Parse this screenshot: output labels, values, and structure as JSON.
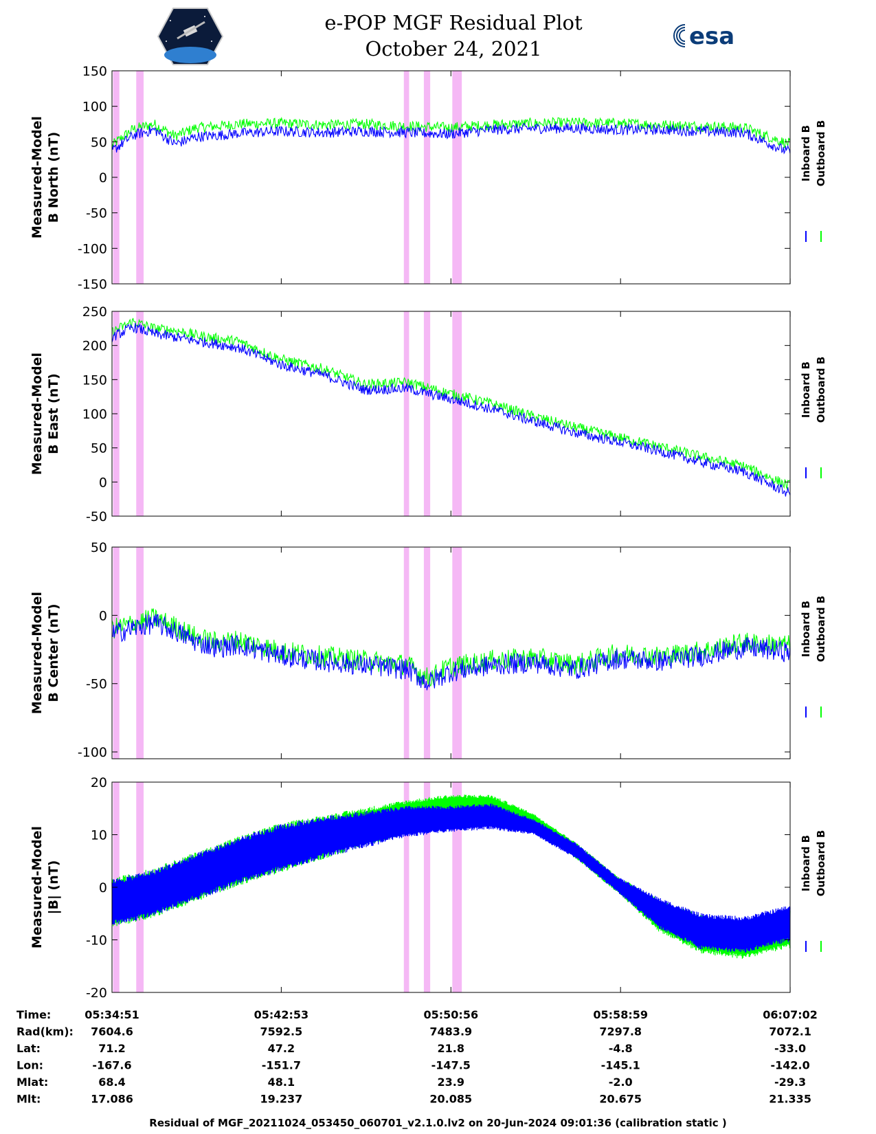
{
  "header": {
    "title": "e-POP MGF Residual Plot",
    "date": "October 24, 2021",
    "left_logo": "satellite-mission-badge",
    "right_logo_text": "esa"
  },
  "colors": {
    "inboard": "#0000ff",
    "outboard": "#00ff00",
    "shading": "#f5b8f5",
    "axis": "#000000"
  },
  "chart_data": [
    {
      "type": "line",
      "ylabel": [
        "Measured-Model",
        "B North (nT)"
      ],
      "ylim": [
        -150,
        150
      ],
      "yticks": [
        -150,
        -100,
        -50,
        0,
        50,
        100,
        150
      ],
      "legend": [
        "Inboard B",
        "Outboard B"
      ],
      "legend_position": "right-vertical",
      "x_minutes": [
        0,
        1,
        2,
        3,
        4,
        5,
        6,
        8,
        10,
        12,
        14,
        16,
        18,
        20,
        22,
        24,
        26,
        28,
        30,
        32
      ],
      "series": [
        {
          "name": "Inboard B",
          "values": [
            40,
            62,
            70,
            50,
            60,
            62,
            65,
            68,
            66,
            68,
            66,
            64,
            70,
            72,
            72,
            70,
            70,
            68,
            66,
            40
          ]
        },
        {
          "name": "Outboard B",
          "values": [
            45,
            68,
            75,
            58,
            70,
            72,
            75,
            76,
            74,
            75,
            72,
            70,
            74,
            76,
            77,
            76,
            74,
            72,
            70,
            48
          ]
        }
      ]
    },
    {
      "type": "line",
      "ylabel": [
        "Measured-Model",
        "B East (nT)"
      ],
      "ylim": [
        -50,
        250
      ],
      "yticks": [
        -50,
        0,
        50,
        100,
        150,
        200,
        250
      ],
      "legend": [
        "Inboard B",
        "Outboard B"
      ],
      "legend_position": "right-vertical",
      "x_minutes": [
        0,
        1,
        2,
        3,
        4,
        5,
        6,
        8,
        10,
        12,
        14,
        16,
        18,
        20,
        22,
        24,
        26,
        28,
        30,
        32
      ],
      "series": [
        {
          "name": "Inboard B",
          "values": [
            215,
            230,
            220,
            215,
            210,
            205,
            200,
            175,
            160,
            138,
            140,
            125,
            110,
            92,
            75,
            62,
            48,
            32,
            18,
            -12
          ]
        },
        {
          "name": "Outboard B",
          "values": [
            220,
            235,
            225,
            222,
            215,
            210,
            206,
            180,
            166,
            143,
            146,
            130,
            115,
            96,
            80,
            66,
            52,
            37,
            23,
            -4
          ]
        }
      ]
    },
    {
      "type": "line",
      "ylabel": [
        "Measured-Model",
        "B Center (nT)"
      ],
      "ylim": [
        -105,
        50
      ],
      "yticks": [
        -100,
        -50,
        0,
        50
      ],
      "legend": [
        "Inboard B",
        "Outboard B"
      ],
      "legend_position": "right-vertical",
      "x_minutes": [
        0,
        1,
        2,
        3,
        4,
        5,
        6,
        8,
        10,
        12,
        14,
        15,
        16,
        18,
        20,
        22,
        24,
        26,
        28,
        30,
        32
      ],
      "series": [
        {
          "name": "Inboard B",
          "values": [
            -12,
            -8,
            -4,
            -10,
            -18,
            -22,
            -20,
            -28,
            -32,
            -35,
            -38,
            -48,
            -40,
            -35,
            -33,
            -38,
            -30,
            -32,
            -28,
            -22,
            -25
          ]
        },
        {
          "name": "Outboard B",
          "values": [
            -10,
            -6,
            -2,
            -8,
            -16,
            -20,
            -18,
            -26,
            -30,
            -33,
            -36,
            -46,
            -38,
            -33,
            -31,
            -36,
            -28,
            -30,
            -26,
            -20,
            -22
          ]
        }
      ]
    },
    {
      "type": "line",
      "ylabel": [
        "Measured-Model",
        "|B| (nT)"
      ],
      "ylim": [
        -20,
        20
      ],
      "yticks": [
        -20,
        -10,
        0,
        10,
        20
      ],
      "legend": [
        "Inboard B",
        "Outboard B"
      ],
      "legend_position": "right-vertical",
      "x_minutes": [
        0,
        2,
        4,
        6,
        8,
        10,
        12,
        14,
        16,
        18,
        20,
        22,
        24,
        26,
        28,
        30,
        32
      ],
      "series": [
        {
          "name": "Inboard B",
          "values": [
            -3,
            -1,
            2,
            5,
            7.5,
            9.5,
            11,
            12.5,
            13,
            13.5,
            11.5,
            7,
            0.5,
            -5,
            -8.5,
            -9,
            -7
          ]
        },
        {
          "name": "Outboard B",
          "values": [
            -3,
            -1,
            2,
            5,
            7.5,
            9.5,
            11.5,
            13.5,
            15,
            15,
            12.5,
            7,
            0.5,
            -5.5,
            -9,
            -10,
            -8
          ]
        }
      ],
      "band_halfwidth": [
        4.5,
        4.5,
        4.5,
        4.5,
        4.5,
        4.0,
        3.5,
        3.0,
        2.5,
        2.5,
        1.5,
        1.5,
        1.5,
        3.0,
        3.5,
        3.5,
        3.5
      ]
    }
  ],
  "x_axis": {
    "xlim_minutes": [
      0,
      32.18
    ],
    "tick_minutes": [
      0,
      8.033,
      16.083,
      24.133,
      32.183
    ],
    "shaded_intervals_minutes": [
      [
        0.05,
        0.35
      ],
      [
        1.15,
        1.5
      ],
      [
        13.85,
        14.1
      ],
      [
        14.8,
        15.1
      ],
      [
        16.15,
        16.6
      ]
    ]
  },
  "ephemeris": {
    "row_labels": [
      "Time:",
      "Rad(km):",
      "Lat:",
      "Lon:",
      "Mlat:",
      "Mlt:"
    ],
    "columns": [
      [
        "05:34:51",
        "7604.6",
        "71.2",
        "-167.6",
        "68.4",
        "17.086"
      ],
      [
        "05:42:53",
        "7592.5",
        "47.2",
        "-151.7",
        "48.1",
        "19.237"
      ],
      [
        "05:50:56",
        "7483.9",
        "21.8",
        "-147.5",
        "23.9",
        "20.085"
      ],
      [
        "05:58:59",
        "7297.8",
        "-4.8",
        "-145.1",
        "-2.0",
        "20.675"
      ],
      [
        "06:07:02",
        "7072.1",
        "-33.0",
        "-142.0",
        "-29.3",
        "21.335"
      ]
    ]
  },
  "footer": "Residual of MGF_20211024_053450_060701_v2.1.0.lv2 on 20-Jun-2024 09:01:36 (calibration static )"
}
